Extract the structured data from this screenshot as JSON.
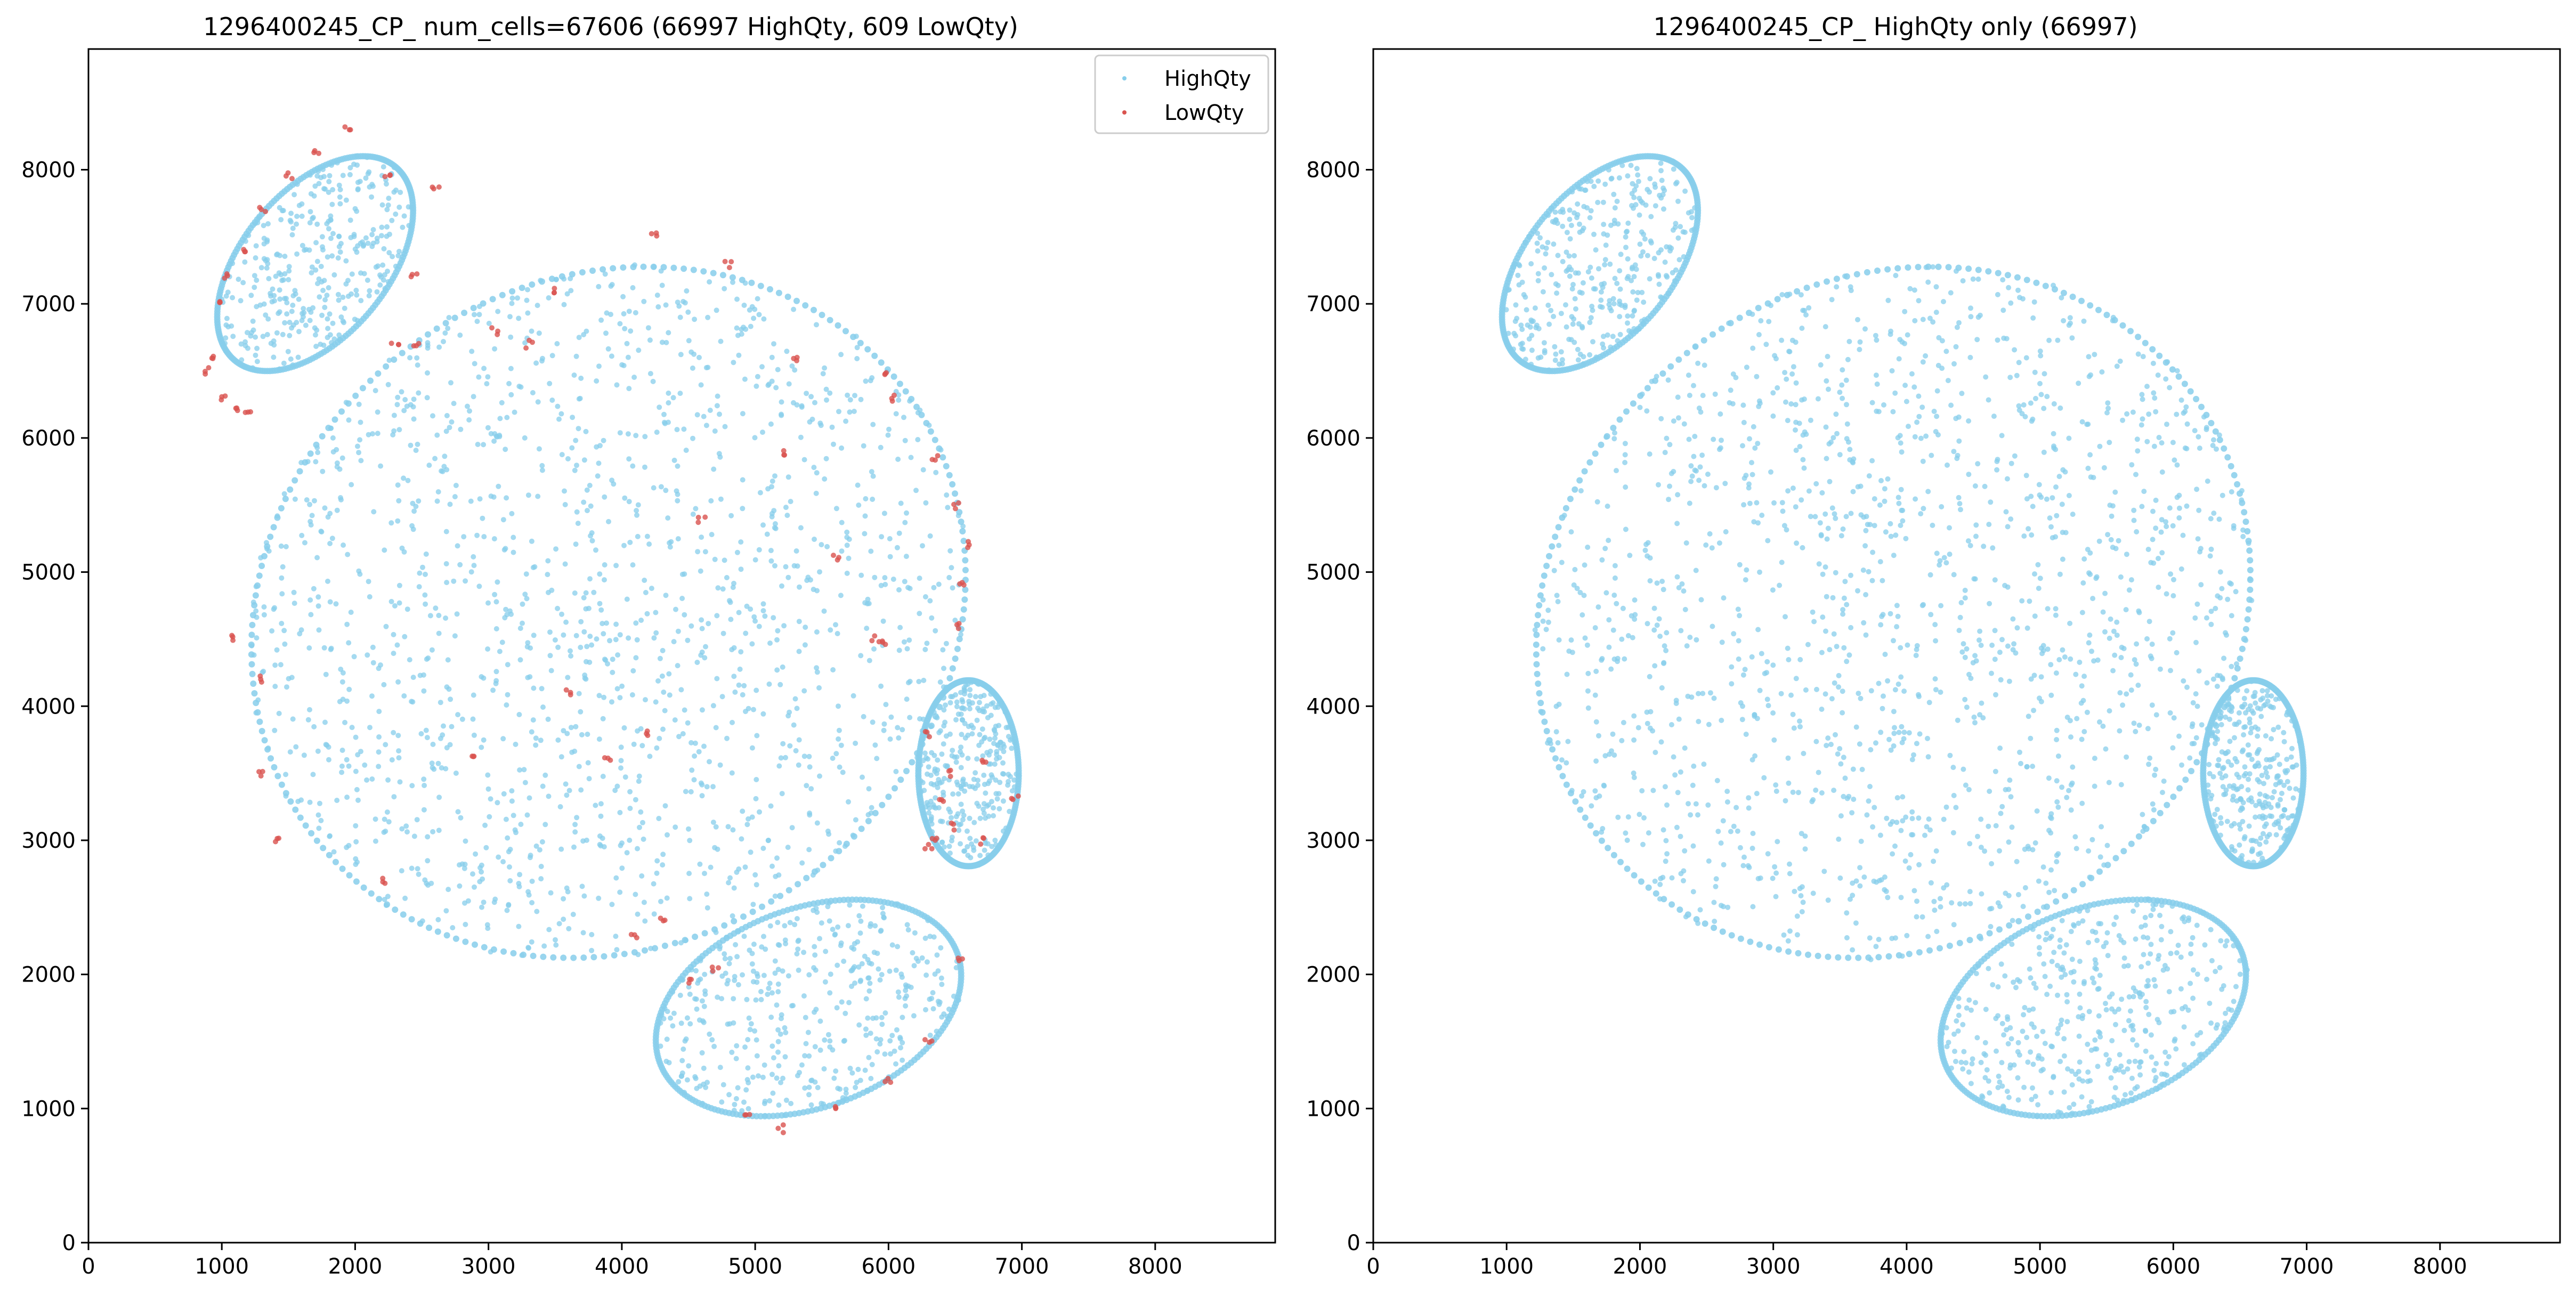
{
  "chart_data": [
    {
      "type": "scatter",
      "title": "1296400245_CP_ num_cells=67606 (66997 HighQty, 609 LowQty)",
      "xlabel": "",
      "ylabel": "",
      "xlim": [
        0,
        8900
      ],
      "ylim": [
        0,
        8900
      ],
      "xticks": [
        "0",
        "1000",
        "2000",
        "3000",
        "4000",
        "5000",
        "6000",
        "7000",
        "8000"
      ],
      "yticks": [
        "0",
        "1000",
        "2000",
        "3000",
        "4000",
        "5000",
        "6000",
        "7000",
        "8000"
      ],
      "grid": false,
      "legend_position": "upper right",
      "series": [
        {
          "name": "HighQty",
          "color": "#87ceeb",
          "count": 66997,
          "regions": [
            {
              "shape": "ellipse",
              "center": [
                3900,
                4700
              ],
              "radii": [
                2800,
                2500
              ],
              "rotation_deg": 35
            },
            {
              "shape": "ellipse",
              "center": [
                1700,
                7300
              ],
              "radii": [
                950,
                550
              ],
              "rotation_deg": 50
            },
            {
              "shape": "ellipse",
              "center": [
                5400,
                1750
              ],
              "radii": [
                1200,
                750
              ],
              "rotation_deg": 20
            },
            {
              "shape": "ellipse",
              "center": [
                6600,
                3500
              ],
              "radii": [
                380,
                700
              ],
              "rotation_deg": 0
            }
          ]
        },
        {
          "name": "LowQty",
          "color": "#d9534f",
          "count": 609,
          "samples": [
            [
              950,
              6600
            ],
            [
              1000,
              6300
            ],
            [
              1100,
              6200
            ],
            [
              1200,
              6180
            ],
            [
              900,
              6500
            ],
            [
              980,
              7000
            ],
            [
              1050,
              7200
            ],
            [
              1150,
              7400
            ],
            [
              1300,
              7700
            ],
            [
              1500,
              7950
            ],
            [
              1700,
              8150
            ],
            [
              1950,
              8320
            ],
            [
              2250,
              7950
            ],
            [
              2600,
              7850
            ],
            [
              2450,
              7200
            ],
            [
              2300,
              6700
            ],
            [
              2450,
              6700
            ],
            [
              6000,
              6500
            ],
            [
              6050,
              6300
            ],
            [
              6350,
              5850
            ],
            [
              6500,
              5500
            ],
            [
              6600,
              5200
            ],
            [
              6550,
              4900
            ],
            [
              5900,
              4500
            ],
            [
              5950,
              4480
            ],
            [
              6300,
              3800
            ],
            [
              6400,
              3300
            ],
            [
              6350,
              3000
            ],
            [
              6300,
              2950
            ],
            [
              6500,
              3100
            ],
            [
              6700,
              3000
            ],
            [
              6950,
              3300
            ],
            [
              6700,
              3600
            ],
            [
              6450,
              3500
            ],
            [
              4100,
              2300
            ],
            [
              4300,
              2400
            ],
            [
              4700,
              2050
            ],
            [
              4500,
              1950
            ],
            [
              4950,
              950
            ],
            [
              5200,
              850
            ],
            [
              5600,
              1000
            ],
            [
              6000,
              1200
            ],
            [
              6300,
              1500
            ],
            [
              6550,
              2100
            ],
            [
              2200,
              2700
            ],
            [
              1400,
              3000
            ],
            [
              1300,
              3500
            ],
            [
              1100,
              4500
            ],
            [
              1300,
              4200
            ],
            [
              2900,
              3600
            ],
            [
              3900,
              3600
            ],
            [
              4200,
              3800
            ],
            [
              3600,
              4100
            ],
            [
              3050,
              6800
            ],
            [
              3300,
              6700
            ],
            [
              3500,
              7100
            ],
            [
              4250,
              7500
            ],
            [
              4800,
              7300
            ],
            [
              5300,
              6600
            ],
            [
              5600,
              5100
            ],
            [
              6500,
              4600
            ],
            [
              4600,
              5400
            ],
            [
              5200,
              5900
            ]
          ]
        }
      ]
    },
    {
      "type": "scatter",
      "title": "1296400245_CP_ HighQty only (66997)",
      "xlabel": "",
      "ylabel": "",
      "xlim": [
        0,
        8900
      ],
      "ylim": [
        0,
        8900
      ],
      "xticks": [
        "0",
        "1000",
        "2000",
        "3000",
        "4000",
        "5000",
        "6000",
        "7000",
        "8000"
      ],
      "yticks": [
        "0",
        "1000",
        "2000",
        "3000",
        "4000",
        "5000",
        "6000",
        "7000",
        "8000"
      ],
      "grid": false,
      "series": [
        {
          "color": "#87ceeb",
          "count": 66997,
          "regions": [
            {
              "shape": "ellipse",
              "center": [
                3900,
                4700
              ],
              "radii": [
                2800,
                2500
              ],
              "rotation_deg": 35
            },
            {
              "shape": "ellipse",
              "center": [
                1700,
                7300
              ],
              "radii": [
                950,
                550
              ],
              "rotation_deg": 50
            },
            {
              "shape": "ellipse",
              "center": [
                5400,
                1750
              ],
              "radii": [
                1200,
                750
              ],
              "rotation_deg": 20
            },
            {
              "shape": "ellipse",
              "center": [
                6600,
                3500
              ],
              "radii": [
                380,
                700
              ],
              "rotation_deg": 0
            }
          ]
        }
      ]
    }
  ]
}
